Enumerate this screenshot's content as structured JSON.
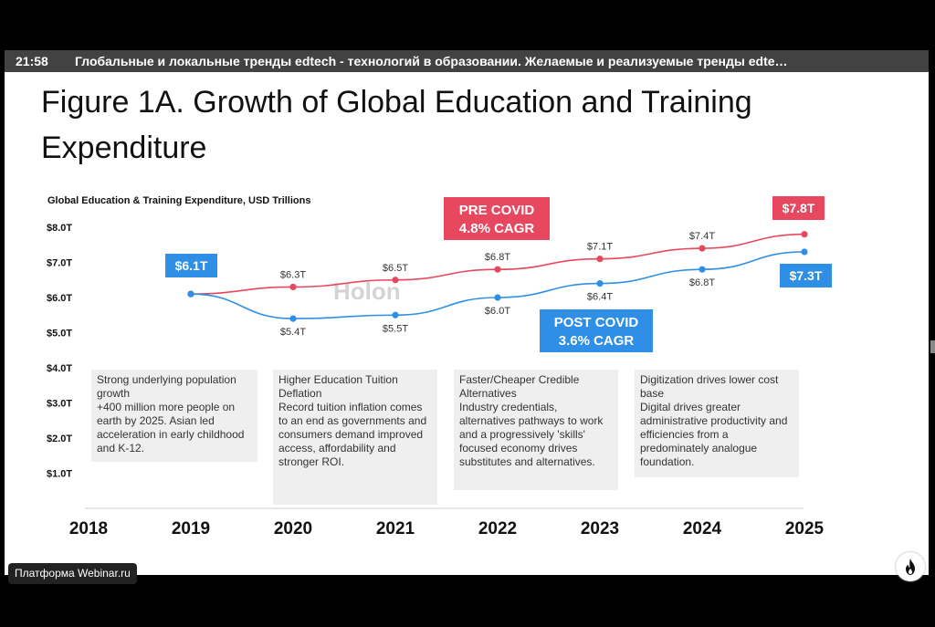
{
  "header": {
    "time": "21:58",
    "title": "Глобальные и локальные тренды edtech - технологий в образовании. Желаемые и реализуемые тренды edte…"
  },
  "slide": {
    "title": "Figure 1A. Growth of Global Education and Training Expenditure",
    "watermark": "Holon"
  },
  "chart_data": {
    "type": "line",
    "title": "Global Education & Training Expenditure, USD Trillions",
    "x": [
      "2018",
      "2019",
      "2020",
      "2021",
      "2022",
      "2023",
      "2024",
      "2025"
    ],
    "y_ticks": [
      "$8.0T",
      "$7.0T",
      "$6.0T",
      "$5.0T",
      "$4.0T",
      "$3.0T",
      "$2.0T",
      "$1.0T"
    ],
    "ylim": [
      0.5,
      8.3
    ],
    "series": [
      {
        "name": "PRE COVID",
        "color": "#e8485f",
        "x": [
          "2019",
          "2020",
          "2021",
          "2022",
          "2023",
          "2024",
          "2025"
        ],
        "values": [
          6.1,
          6.3,
          6.5,
          6.8,
          7.1,
          7.4,
          7.8
        ],
        "labels": [
          "$6.1T",
          "$6.3T",
          "$6.5T",
          "$6.8T",
          "$7.1T",
          "$7.4T",
          "$7.8T"
        ]
      },
      {
        "name": "POST COVID",
        "color": "#2f8fe6",
        "x": [
          "2019",
          "2020",
          "2021",
          "2022",
          "2023",
          "2024",
          "2025"
        ],
        "values": [
          6.1,
          5.4,
          5.5,
          6.0,
          6.4,
          6.8,
          7.3
        ],
        "labels": [
          "$6.1T",
          "$5.4T",
          "$5.5T",
          "$6.0T",
          "$6.4T",
          "$6.8T",
          "$7.3T"
        ]
      }
    ],
    "callouts": {
      "pre_covid": [
        "PRE COVID",
        "4.8% CAGR"
      ],
      "post_covid": [
        "POST COVID",
        "3.6% CAGR"
      ]
    },
    "grid": false
  },
  "notes": [
    {
      "heading": "Strong underlying population growth",
      "body": "+400 million more people on earth by 2025. Asian led acceleration in early childhood and K-12."
    },
    {
      "heading": "Higher Education Tuition Deflation",
      "body": "Record tuition inflation comes to an end as governments and consumers demand improved access, affordability and stronger ROI."
    },
    {
      "heading": "Faster/Cheaper Credible Alternatives",
      "body": "Industry credentials, alternatives pathways to work and a progressively 'skills' focused economy drives substitutes and alternatives."
    },
    {
      "heading": "Digitization drives lower cost base",
      "body": "Digital drives greater administrative productivity and efficiencies from a predominately analogue foundation."
    }
  ],
  "footer": {
    "platform": "Платформа Webinar.ru"
  },
  "colors": {
    "pre_covid": "#e8485f",
    "post_covid": "#2f8fe6",
    "note_bg": "#efefef"
  },
  "icons": [
    "fire-icon"
  ]
}
